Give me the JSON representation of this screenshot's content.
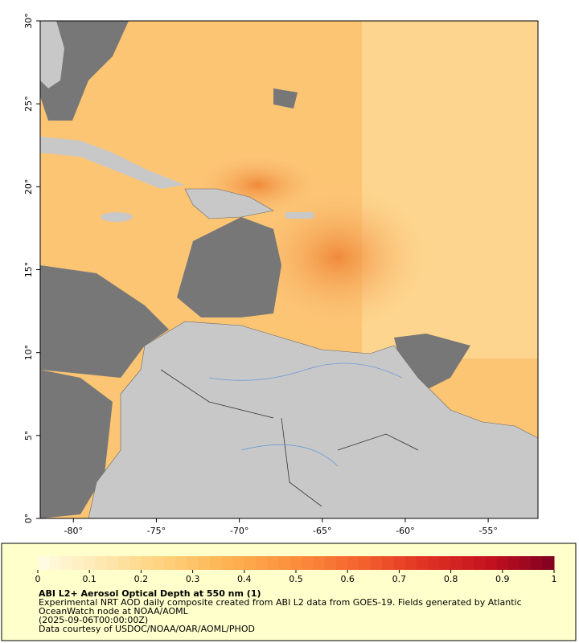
{
  "map": {
    "xlim": [
      -82,
      -52
    ],
    "ylim": [
      0,
      30
    ],
    "xticks": [
      {
        "value": -80,
        "label": "-80°"
      },
      {
        "value": -75,
        "label": "-75°"
      },
      {
        "value": -70,
        "label": "-70°"
      },
      {
        "value": -65,
        "label": "-65°"
      },
      {
        "value": -60,
        "label": "-60°"
      },
      {
        "value": -55,
        "label": "-55°"
      }
    ],
    "yticks": [
      {
        "value": 0,
        "label": "0°"
      },
      {
        "value": 5,
        "label": "5°"
      },
      {
        "value": 10,
        "label": "10°"
      },
      {
        "value": 15,
        "label": "15°"
      },
      {
        "value": 20,
        "label": "20°"
      },
      {
        "value": 25,
        "label": "25°"
      },
      {
        "value": 30,
        "label": "30°"
      }
    ]
  },
  "colorbar": {
    "range": [
      0,
      1
    ],
    "ticks": [
      0,
      0.1,
      0.2,
      0.3,
      0.4,
      0.5,
      0.6,
      0.7,
      0.8,
      0.9,
      1
    ],
    "colors": [
      "#fffce6",
      "#fee8b0",
      "#fed07a",
      "#fdb050",
      "#fc8d3c",
      "#f4622e",
      "#e03224",
      "#c4121f",
      "#7f0021"
    ]
  },
  "caption": {
    "title": "ABI L2+ Aerosol Optical Depth at 550 nm (1)",
    "lines": [
      "Experimental NRT AOD daily composite created from ABI L2 data from GOES-19. Fields generated by Atlantic",
      "OceanWatch node at NOAA/AOML",
      "(2025-09-06T00:00:00Z)",
      "Data courtesy of USDOC/NOAA/OAR/AOML/PHOD"
    ]
  }
}
